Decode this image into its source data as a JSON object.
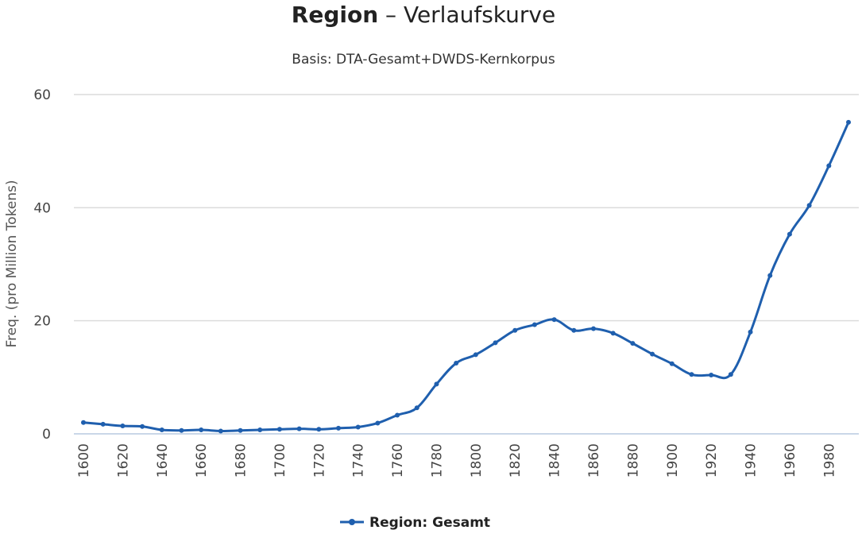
{
  "chart_data": {
    "type": "line",
    "title_bold": "Region",
    "title_rest": " – Verlaufskurve",
    "subtitle": "Basis: DTA-Gesamt+DWDS-Kernkorpus",
    "ylabel": "Freq. (pro Million Tokens)",
    "xlabel": "",
    "ylim": [
      0,
      60
    ],
    "yticks": [
      0,
      20,
      40,
      60
    ],
    "xticks": [
      1600,
      1620,
      1640,
      1660,
      1680,
      1700,
      1720,
      1740,
      1760,
      1780,
      1800,
      1820,
      1840,
      1860,
      1880,
      1900,
      1920,
      1940,
      1960,
      1980
    ],
    "grid": true,
    "legend_position": "bottom-center",
    "color": "#1f5fae",
    "series": [
      {
        "name": "Region: Gesamt",
        "x": [
          1600,
          1610,
          1620,
          1630,
          1640,
          1650,
          1660,
          1670,
          1680,
          1690,
          1700,
          1710,
          1720,
          1730,
          1740,
          1750,
          1760,
          1770,
          1780,
          1790,
          1800,
          1810,
          1820,
          1830,
          1840,
          1850,
          1860,
          1870,
          1880,
          1890,
          1900,
          1910,
          1920,
          1930,
          1940,
          1950,
          1960,
          1970,
          1980,
          1990
        ],
        "values": [
          2.0,
          1.7,
          1.4,
          1.3,
          0.7,
          0.6,
          0.7,
          0.5,
          0.6,
          0.7,
          0.8,
          0.9,
          0.8,
          1.0,
          1.2,
          1.9,
          3.3,
          4.6,
          8.8,
          12.5,
          14.0,
          16.1,
          18.3,
          19.3,
          20.2,
          18.3,
          18.6,
          17.8,
          16.0,
          14.1,
          12.4,
          10.5,
          10.4,
          10.5,
          18.0,
          28.0,
          35.3,
          40.4,
          47.4,
          55.1
        ]
      }
    ]
  }
}
